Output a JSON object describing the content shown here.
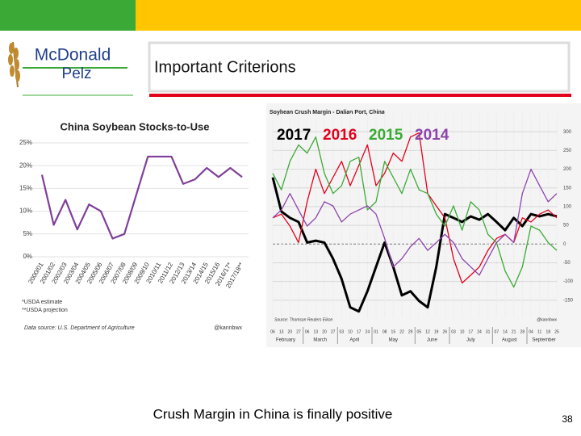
{
  "slide": {
    "logo_top": "McDonald",
    "logo_bottom": "Pelz",
    "title": "Important Criterions",
    "caption": "Crush Margin in China is finally positive",
    "page_number": "38"
  },
  "chart_data": [
    {
      "type": "line",
      "title": "China Soybean Stocks-to-Use",
      "categories": [
        "2000/01",
        "2001/02",
        "2002/03",
        "2003/04",
        "2004/05",
        "2005/06",
        "2006/07",
        "2007/08",
        "2008/09",
        "2009/10",
        "2010/11",
        "2011/12",
        "2012/13",
        "2013/14",
        "2014/15",
        "2015/16",
        "2016/17*",
        "2017/18**"
      ],
      "values": [
        18,
        7,
        12.5,
        6,
        11.5,
        10,
        4,
        5,
        13.5,
        22,
        22,
        22,
        16,
        17,
        19.5,
        17.5,
        19.5,
        17.5
      ],
      "color": "#7f3f98",
      "ylim": [
        0,
        25
      ],
      "yticks": [
        {
          "value": 0,
          "label": "0%"
        },
        {
          "value": 5,
          "label": "5%"
        },
        {
          "value": 10,
          "label": "10%"
        },
        {
          "value": 15,
          "label": "15%"
        },
        {
          "value": 20,
          "label": "20%"
        },
        {
          "value": 25,
          "label": "25%"
        }
      ],
      "grid": true,
      "notes": [
        "*USDA estimate",
        "**USDA projection"
      ],
      "source": "Data source: U.S. Department of Agriculture",
      "credit": "@kannbwx"
    },
    {
      "type": "line",
      "title": "Soybean Crush Margin - Dalian Port, China",
      "categories": [
        "06",
        "13",
        "20",
        "27",
        "06",
        "13",
        "20",
        "27",
        "03",
        "10",
        "17",
        "24",
        "01",
        "08",
        "15",
        "22",
        "29",
        "05",
        "12",
        "19",
        "26",
        "03",
        "10",
        "17",
        "24",
        "31",
        "07",
        "14",
        "21",
        "28",
        "04",
        "11",
        "18",
        "25"
      ],
      "months": [
        {
          "label": "February",
          "start": 0
        },
        {
          "label": "March",
          "start": 4
        },
        {
          "label": "April",
          "start": 8
        },
        {
          "label": "May",
          "start": 12
        },
        {
          "label": "June",
          "start": 17
        },
        {
          "label": "July",
          "start": 21
        },
        {
          "label": "August",
          "start": 26
        },
        {
          "label": "September",
          "start": 30
        }
      ],
      "series": [
        {
          "name": "2017",
          "color": "#000000",
          "values": [
            178,
            87,
            70,
            59,
            4,
            9,
            4,
            -39,
            -93,
            -169,
            -180,
            -126,
            -61,
            4,
            -61,
            -137,
            -126,
            -152,
            -169,
            -61,
            80,
            70,
            59,
            74,
            65,
            80,
            59,
            37,
            70,
            48,
            80,
            74,
            80,
            74
          ]
        },
        {
          "name": "2016",
          "color": "#e3001b",
          "values": [
            70,
            80,
            48,
            4,
            113,
            200,
            135,
            178,
            221,
            156,
            210,
            265,
            156,
            189,
            243,
            221,
            286,
            297,
            135,
            102,
            70,
            -39,
            -104,
            -83,
            -61,
            -17,
            15,
            26,
            4,
            70,
            59,
            80,
            91,
            70
          ]
        },
        {
          "name": "2015",
          "color": "#3aaa35",
          "values": [
            189,
            145,
            221,
            265,
            243,
            286,
            189,
            135,
            156,
            221,
            232,
            91,
            113,
            221,
            178,
            135,
            200,
            145,
            135,
            80,
            48,
            102,
            37,
            113,
            91,
            26,
            4,
            -72,
            -115,
            -61,
            48,
            37,
            4,
            -17
          ]
        },
        {
          "name": "2014",
          "color": "#8e44ad",
          "values": [
            70,
            91,
            135,
            91,
            48,
            70,
            113,
            102,
            59,
            80,
            91,
            102,
            80,
            15,
            -61,
            -39,
            -7,
            15,
            -17,
            4,
            26,
            4,
            -39,
            -61,
            -83,
            -39,
            4,
            26,
            4,
            135,
            200,
            156,
            113,
            135
          ]
        }
      ],
      "ylim": [
        -200,
        350
      ],
      "yticks": [
        -150,
        -100,
        -50,
        0,
        50,
        100,
        150,
        200,
        250,
        300
      ],
      "grid": true,
      "source": "Source: Thomson Reuters Eikon",
      "credit": "@kannbwx"
    }
  ]
}
